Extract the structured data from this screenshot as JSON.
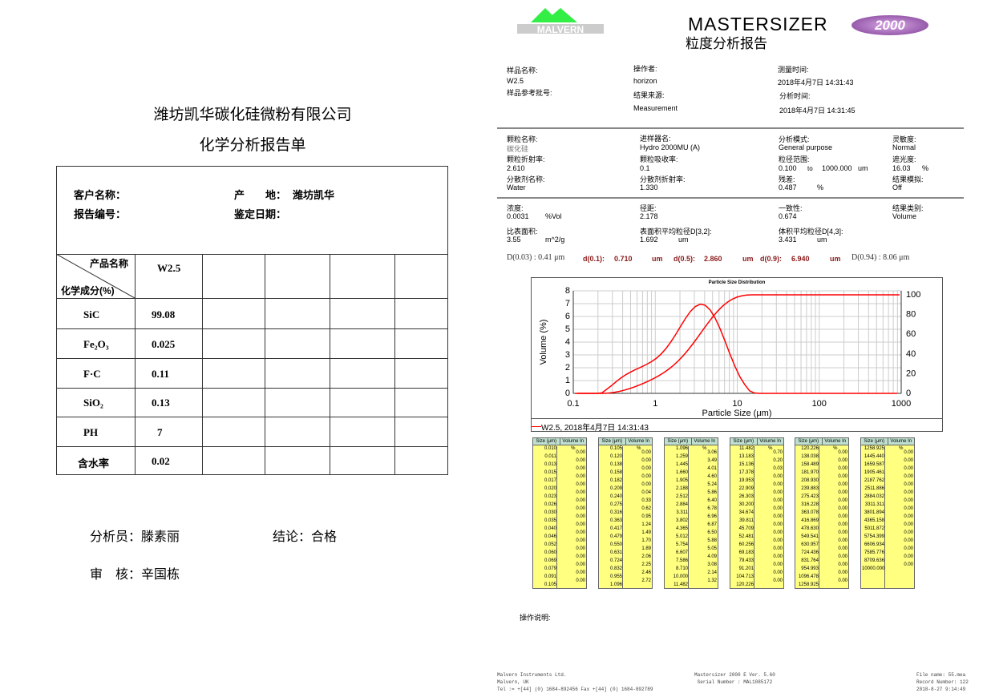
{
  "left": {
    "company": "潍坊凯华碳化硅微粉有限公司",
    "title": "化学分析报告单",
    "customer_label": "客户名称：",
    "origin_label": "产　　地：",
    "origin_value": "潍坊凯华",
    "report_no_label": "报告编号：",
    "date_label": "鉴定日期：",
    "header_product": "产品名称",
    "header_component": "化学成分(%)",
    "product": "W2.5",
    "rows": [
      {
        "name": "SiC",
        "value": "99.08"
      },
      {
        "name": "Fe₂O₃",
        "value": "0.025"
      },
      {
        "name": "F·C",
        "value": "0.11"
      },
      {
        "name": "SiO₂",
        "value": "0.13"
      },
      {
        "name": "PH",
        "value": "7"
      },
      {
        "name": "含水率",
        "value": "0.02"
      }
    ],
    "analyst": "分析员：滕素丽",
    "conclusion": "结论：合格",
    "reviewer": "审　核：辛国栋"
  },
  "right": {
    "logo_text": "MALVERN",
    "brand": "MASTERSIZER",
    "brand_badge": "2000",
    "report_title": "粒度分析报告",
    "colors": {
      "logo_green": "#33ee44",
      "accent_red": "#8b1a1a",
      "curve": "#ff0000",
      "table_fill": "#ffff80",
      "table_header": "#bfe0d0"
    },
    "info": {
      "sample_name_label": "样品名称:",
      "sample_name": "W2.5",
      "sample_ref_label": "样品参考批号:",
      "operator_label": "操作者:",
      "operator": "horizon",
      "source_label": "结果来源:",
      "source": "Measurement",
      "measured_label": "测量时间:",
      "measured": "2018年4月7日 14:31:43",
      "analysed_label": "分析时间:",
      "analysed": "2018年4月7日 14:31:45"
    },
    "params": {
      "particle_name_label": "颗粒名称:",
      "particle_name": "碳化硅",
      "particle_ri_label": "颗粒折射率:",
      "particle_ri": "2.610",
      "dispersant_label": "分散剂名称:",
      "dispersant": "Water",
      "accessory_label": "进样器名:",
      "accessory": "Hydro 2000MU (A)",
      "absorption_label": "颗粒吸收率:",
      "absorption": "0.1",
      "dispersant_ri_label": "分散剂折射率:",
      "dispersant_ri": "1.330",
      "model_label": "分析模式:",
      "model": "General purpose",
      "range_label": "粒径范围:",
      "range_from": "0.100",
      "range_to_word": "to",
      "range_to": "1000.000",
      "range_unit": "um",
      "residual_label": "残差:",
      "residual": "0.487",
      "residual_unit": "%",
      "sensitivity_label": "灵敏度:",
      "sensitivity": "Normal",
      "obscuration_label": "遮光度:",
      "obscuration": "16.03",
      "obscuration_unit": "%",
      "emulation_label": "结果模拟:",
      "emulation": "Off"
    },
    "results": {
      "concentration_label": "浓度:",
      "concentration": "0.0031",
      "concentration_unit": "%Vol",
      "span_label": "径距:",
      "span": "2.178",
      "uniformity_label": "一致性:",
      "uniformity": "0.674",
      "result_units_label": "结果类别:",
      "result_units": "Volume",
      "ssa_label": "比表面积:",
      "ssa": "3.55",
      "ssa_unit": "m^2/g",
      "d32_label": "表面积平均粒径D[3,2]:",
      "d32": "1.692",
      "d32_unit": "um",
      "d43_label": "体积平均粒径D[4,3]:",
      "d43": "3.431",
      "d43_unit": "um"
    },
    "dvalues": {
      "d003": "D(0.03) : 0.41 μm",
      "d01_label": "d(0.1):",
      "d01": "0.710",
      "d05_label": "d(0.5):",
      "d05": "2.860",
      "d09_label": "d(0.9):",
      "d09": "6.940",
      "unit": "um",
      "d094": "D(0.94) : 8.06 μm"
    },
    "operation_notes_label": "操作说明:",
    "footer": {
      "left": [
        "Malvern Instruments Ltd.",
        "Malvern, UK",
        "Tel := +[44] (0) 1684-892456 Fax +[44] (0) 1684-892789"
      ],
      "center": [
        "Mastersizer 2000 E Ver. 5.60",
        "Serial Number : MAL1085172"
      ],
      "right": [
        "File name: 55.mea",
        "Record Number: 122",
        "2018-8-27 9:14:49"
      ]
    },
    "table_headers": [
      "Size (μm)",
      "Volume In %"
    ],
    "tables": [
      {
        "sizes": [
          "0.010",
          "0.011",
          "0.013",
          "0.015",
          "0.017",
          "0.020",
          "0.023",
          "0.026",
          "0.030",
          "0.035",
          "0.040",
          "0.046",
          "0.052",
          "0.060",
          "0.069",
          "0.079",
          "0.091",
          "0.105"
        ],
        "volumes": [
          "0.00",
          "0.00",
          "0.00",
          "0.00",
          "0.00",
          "0.00",
          "0.00",
          "0.00",
          "0.00",
          "0.00",
          "0.00",
          "0.00",
          "0.00",
          "0.00",
          "0.00",
          "0.00",
          "0.00"
        ]
      },
      {
        "sizes": [
          "0.105",
          "0.120",
          "0.138",
          "0.158",
          "0.182",
          "0.209",
          "0.240",
          "0.275",
          "0.316",
          "0.363",
          "0.417",
          "0.479",
          "0.550",
          "0.631",
          "0.724",
          "0.832",
          "0.955",
          "1.096"
        ],
        "volumes": [
          "0.00",
          "0.00",
          "0.00",
          "0.00",
          "0.00",
          "0.04",
          "0.33",
          "0.62",
          "0.95",
          "1.24",
          "1.49",
          "1.70",
          "1.89",
          "2.06",
          "2.25",
          "2.46",
          "2.72"
        ]
      },
      {
        "sizes": [
          "1.096",
          "1.259",
          "1.445",
          "1.660",
          "1.905",
          "2.188",
          "2.512",
          "2.884",
          "3.311",
          "3.802",
          "4.365",
          "5.012",
          "5.754",
          "6.607",
          "7.586",
          "8.710",
          "10.000",
          "11.482"
        ],
        "volumes": [
          "3.06",
          "3.49",
          "4.01",
          "4.60",
          "5.24",
          "5.86",
          "6.40",
          "6.78",
          "6.96",
          "6.87",
          "6.50",
          "5.88",
          "5.05",
          "4.09",
          "3.08",
          "2.14",
          "1.32"
        ]
      },
      {
        "sizes": [
          "11.482",
          "13.183",
          "15.136",
          "17.378",
          "19.953",
          "22.909",
          "26.303",
          "30.200",
          "34.674",
          "39.811",
          "45.709",
          "52.481",
          "60.256",
          "69.183",
          "79.433",
          "91.201",
          "104.713",
          "120.226"
        ],
        "volumes": [
          "0.70",
          "0.20",
          "0.03",
          "0.00",
          "0.00",
          "0.00",
          "0.00",
          "0.00",
          "0.00",
          "0.00",
          "0.00",
          "0.00",
          "0.00",
          "0.00",
          "0.00",
          "0.00",
          "0.00"
        ]
      },
      {
        "sizes": [
          "120.226",
          "138.038",
          "158.489",
          "181.970",
          "208.930",
          "239.883",
          "275.423",
          "316.228",
          "363.078",
          "416.869",
          "478.630",
          "549.541",
          "630.957",
          "724.436",
          "831.764",
          "954.993",
          "1096.478",
          "1258.925"
        ],
        "volumes": [
          "0.00",
          "0.00",
          "0.00",
          "0.00",
          "0.00",
          "0.00",
          "0.00",
          "0.00",
          "0.00",
          "0.00",
          "0.00",
          "0.00",
          "0.00",
          "0.00",
          "0.00",
          "0.00",
          "0.00"
        ]
      },
      {
        "sizes": [
          "1258.925",
          "1445.440",
          "1659.587",
          "1905.461",
          "2187.762",
          "2511.886",
          "2884.032",
          "3311.311",
          "3801.894",
          "4365.158",
          "5011.872",
          "5754.399",
          "6606.934",
          "7585.776",
          "8709.636",
          "10000.000"
        ],
        "volumes": [
          "0.00",
          "0.00",
          "0.00",
          "0.00",
          "0.00",
          "0.00",
          "0.00",
          "0.00",
          "0.00",
          "0.00",
          "0.00",
          "0.00",
          "0.00",
          "0.00",
          "0.00"
        ]
      }
    ]
  },
  "chart_data": {
    "type": "line",
    "title": "Particle Size Distribution",
    "xlabel": "Particle Size (μm)",
    "ylabel": "Volume (%)",
    "xscale": "log",
    "xlim": [
      0.1,
      1000
    ],
    "ylim": [
      0,
      8
    ],
    "y2lim": [
      0,
      100
    ],
    "xticks": [
      "0.1",
      "1",
      "10",
      "100",
      "1000"
    ],
    "yticks": [
      "0",
      "1",
      "2",
      "3",
      "4",
      "5",
      "6",
      "7",
      "8"
    ],
    "y2ticks": [
      "0",
      "20",
      "40",
      "60",
      "80",
      "100"
    ],
    "grid": true,
    "legend": "W2.5, 2018年4月7日 14:31:43",
    "legend_placement": "bottom-left",
    "series": [
      {
        "kind": "density",
        "source": "right.tables"
      },
      {
        "kind": "cumulative",
        "source": "right.tables"
      }
    ]
  }
}
